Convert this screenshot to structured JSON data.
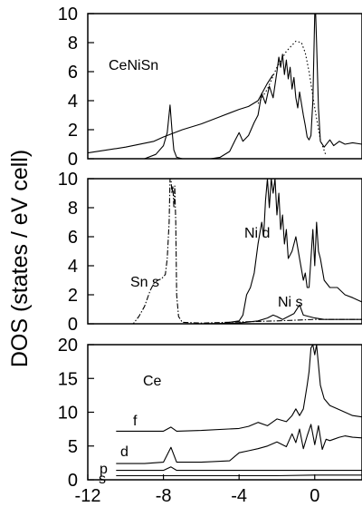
{
  "figure": {
    "ylabel": "DOS (states / eV cell)",
    "x_tick_labels": [
      "-12",
      "-8",
      "-4",
      "0"
    ]
  },
  "chart_data": [
    {
      "type": "line",
      "panel": "top",
      "annotation": "CeNiSn",
      "xlim": [
        -12,
        2.5
      ],
      "ylim": [
        0,
        10
      ],
      "y_ticks": [
        0,
        2,
        4,
        6,
        8,
        10
      ],
      "y_tick_labels": [
        "0",
        "2",
        "4",
        "6",
        "8",
        "10"
      ],
      "series": [
        {
          "style": "solid",
          "x": [
            -12,
            -11,
            -10,
            -9,
            -8.4,
            -8.0,
            -7.8,
            -7.65,
            -7.55,
            -7.45,
            -7.3,
            -7.0,
            -6.5,
            -6,
            -5.5,
            -5,
            -4.5,
            -4.2,
            -4.0,
            -3.8,
            -3.5,
            -3.2,
            -3.0,
            -2.8,
            -2.6,
            -2.4,
            -2.2,
            -2.0,
            -1.9,
            -1.8,
            -1.7,
            -1.6,
            -1.5,
            -1.4,
            -1.3,
            -1.2,
            -1.1,
            -1.0,
            -0.9,
            -0.8,
            -0.7,
            -0.6,
            -0.5,
            -0.4,
            -0.3,
            -0.2,
            -0.1,
            0.0,
            0.05,
            0.1,
            0.2,
            0.3,
            0.5,
            0.8,
            1.0,
            1.3,
            1.6,
            2.0,
            2.5
          ],
          "y": [
            0,
            0,
            0,
            0,
            0.3,
            0.9,
            1.8,
            3.7,
            2.0,
            0.6,
            0.1,
            0,
            0,
            0,
            0,
            0.1,
            0.5,
            1.3,
            1.8,
            1.2,
            1.6,
            2.5,
            3.0,
            4.5,
            3.8,
            5.0,
            4.2,
            6.0,
            7.0,
            6.3,
            7.2,
            5.8,
            6.8,
            5.5,
            6.3,
            4.8,
            5.6,
            4.2,
            3.5,
            4.6,
            3.8,
            3.0,
            2.3,
            1.5,
            1.3,
            1.6,
            4.0,
            10,
            10,
            8.0,
            3.5,
            1.2,
            0.8,
            1.3,
            0.9,
            1.2,
            1.0,
            1.1,
            1.0
          ]
        },
        {
          "style": "dotted",
          "x": [
            -3.0,
            -2.5,
            -2.0,
            -1.5,
            -1.0,
            -0.7,
            -0.5,
            -0.3,
            0.0,
            0.3,
            0.6
          ],
          "y": [
            3.8,
            4.8,
            6.3,
            7.4,
            8.1,
            8.0,
            7.3,
            6.0,
            3.5,
            1.3,
            0.2
          ]
        },
        {
          "style": "solid",
          "x": [
            -12,
            -10,
            -8.5,
            -8,
            -7,
            -6,
            -5,
            -4,
            -3.5,
            -3,
            -2.5,
            -2.2
          ],
          "y": [
            0.4,
            0.8,
            1.2,
            1.5,
            2.0,
            2.4,
            2.9,
            3.4,
            3.6,
            4.0,
            5.2,
            5.8
          ]
        }
      ]
    },
    {
      "type": "line",
      "panel": "middle",
      "xlim": [
        -12,
        2.5
      ],
      "ylim": [
        0,
        10
      ],
      "y_ticks": [
        0,
        2,
        4,
        6,
        8,
        10
      ],
      "y_tick_labels": [
        "0",
        "2",
        "4",
        "6",
        "8",
        "10"
      ],
      "annotations": [
        "Sn s",
        "Ni d",
        "Ni s"
      ],
      "series": [
        {
          "name": "Sn s",
          "style": "dash-dot",
          "x": [
            -12,
            -10,
            -9.6,
            -9.3,
            -9.0,
            -8.7,
            -8.5,
            -8.3,
            -8.1,
            -7.9,
            -7.8,
            -7.7,
            -7.65,
            -7.6,
            -7.55,
            -7.5,
            -7.45,
            -7.4,
            -7.35,
            -7.3,
            -7.2,
            -7.0,
            -6.0,
            -2.0,
            0.0,
            2.5
          ],
          "y": [
            0,
            0,
            0,
            0.5,
            1.2,
            2.3,
            2.8,
            3.0,
            3.1,
            3.4,
            4.5,
            7.0,
            10,
            10,
            9.0,
            9.5,
            8.0,
            9.5,
            7.0,
            2.0,
            0.5,
            0.1,
            0.05,
            0.2,
            0.3,
            0.3
          ]
        },
        {
          "name": "Ni d",
          "style": "solid",
          "x": [
            -12,
            -6,
            -5,
            -4,
            -3.8,
            -3.6,
            -3.4,
            -3.2,
            -3.0,
            -2.8,
            -2.7,
            -2.6,
            -2.5,
            -2.4,
            -2.3,
            -2.2,
            -2.1,
            -2.0,
            -1.9,
            -1.8,
            -1.7,
            -1.6,
            -1.5,
            -1.4,
            -1.2,
            -1.0,
            -0.8,
            -0.6,
            -0.5,
            -0.4,
            -0.3,
            -0.2,
            -0.1,
            0.0,
            0.1,
            0.2,
            0.3,
            0.5,
            0.8,
            1.2,
            1.6,
            2.0,
            2.5
          ],
          "y": [
            0,
            0,
            0,
            0.2,
            0.6,
            2.0,
            2.5,
            3.5,
            5.5,
            7.0,
            6.0,
            8.5,
            10,
            8.0,
            10,
            9.0,
            10,
            7.5,
            9.0,
            6.5,
            7.5,
            5.5,
            6.5,
            4.5,
            5.0,
            6.0,
            4.5,
            3.0,
            3.5,
            2.5,
            2.5,
            4.5,
            6.5,
            4.0,
            7.0,
            5.0,
            4.5,
            3.0,
            2.5,
            2.5,
            2.0,
            1.8,
            1.5
          ]
        },
        {
          "name": "Ni s",
          "style": "solid",
          "x": [
            -12,
            -6,
            -4,
            -3.0,
            -2.5,
            -2.2,
            -2.0,
            -1.7,
            -1.4,
            -1.1,
            -1.0,
            -0.8,
            -0.6,
            -0.3,
            0.0,
            0.5,
            1.0,
            2.0,
            2.5
          ],
          "y": [
            0,
            0,
            0.05,
            0.2,
            0.4,
            0.6,
            0.5,
            0.3,
            0.5,
            0.7,
            0.9,
            1.3,
            0.6,
            0.5,
            0.4,
            0.3,
            0.3,
            0.3,
            0.3
          ]
        }
      ]
    },
    {
      "type": "line",
      "panel": "bottom",
      "annotation": "Ce",
      "xlim": [
        -12,
        2.5
      ],
      "ylim": [
        0,
        20
      ],
      "y_ticks": [
        0,
        5,
        10,
        15,
        20
      ],
      "y_tick_labels": [
        "0",
        "5",
        "10",
        "15",
        "20"
      ],
      "series": [
        {
          "name": "f",
          "style": "solid",
          "x": [
            -10.5,
            -8,
            -7.6,
            -7.3,
            -6,
            -4,
            -3.5,
            -3.0,
            -2.5,
            -2.0,
            -1.5,
            -1.2,
            -1.0,
            -0.8,
            -0.6,
            -0.4,
            -0.3,
            -0.2,
            -0.1,
            0.0,
            0.1,
            0.2,
            0.3,
            0.5,
            0.8,
            1.2,
            1.6,
            2.0,
            2.5
          ],
          "y": [
            7.2,
            7.2,
            7.8,
            7.2,
            7.3,
            7.6,
            7.9,
            8.5,
            8.0,
            9.0,
            8.6,
            9.5,
            10.5,
            9.5,
            10.5,
            14.0,
            16.0,
            19.5,
            20,
            18.5,
            20,
            17.0,
            14.0,
            12.0,
            11.0,
            10.5,
            10.0,
            9.5,
            9.3
          ]
        },
        {
          "name": "d",
          "style": "solid",
          "x": [
            -10.5,
            -9,
            -8,
            -7.6,
            -7.3,
            -6,
            -4.5,
            -4.0,
            -3.5,
            -3.0,
            -2.5,
            -2.0,
            -1.5,
            -1.2,
            -1.0,
            -0.8,
            -0.6,
            -0.4,
            -0.2,
            0.0,
            0.2,
            0.4,
            0.6,
            0.8,
            1.0,
            1.3,
            1.6,
            2.0,
            2.5
          ],
          "y": [
            2.4,
            2.4,
            2.6,
            4.8,
            2.6,
            2.6,
            2.8,
            4.0,
            4.3,
            4.6,
            5.0,
            5.6,
            4.9,
            6.8,
            5.5,
            7.5,
            4.6,
            6.5,
            8.2,
            5.2,
            8.0,
            4.5,
            6.0,
            5.8,
            6.0,
            6.3,
            6.5,
            6.3,
            6.2
          ]
        },
        {
          "name": "p",
          "style": "solid",
          "x": [
            -10.5,
            -8,
            -7.6,
            -7.3,
            -6,
            -3,
            0,
            2.5
          ],
          "y": [
            1.4,
            1.4,
            1.9,
            1.4,
            1.4,
            1.4,
            1.4,
            1.4
          ]
        },
        {
          "name": "s",
          "style": "solid",
          "x": [
            -10.5,
            -6,
            -2,
            0,
            2.5
          ],
          "y": [
            0.6,
            0.6,
            0.6,
            0.7,
            0.7
          ]
        }
      ]
    }
  ]
}
